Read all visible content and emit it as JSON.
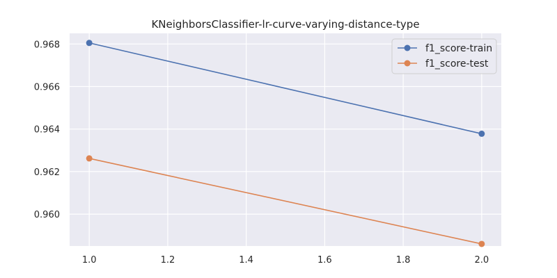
{
  "chart_data": {
    "type": "line",
    "title": "KNeighborsClassifier-lr-curve-varying-distance-type",
    "xlabel": "",
    "ylabel": "",
    "xlim": [
      0.95,
      2.05
    ],
    "ylim": [
      0.9585,
      0.9685
    ],
    "x_ticks": [
      1.0,
      1.2,
      1.4,
      1.6,
      1.8,
      2.0
    ],
    "x_tick_labels": [
      "1.0",
      "1.2",
      "1.4",
      "1.6",
      "1.8",
      "2.0"
    ],
    "y_ticks": [
      0.96,
      0.962,
      0.964,
      0.966,
      0.968
    ],
    "y_tick_labels": [
      "0.960",
      "0.962",
      "0.964",
      "0.966",
      "0.968"
    ],
    "grid": true,
    "legend_position": "top-right",
    "series": [
      {
        "name": "f1_score-train",
        "color": "#4c72b0",
        "x": [
          1.0,
          2.0
        ],
        "y": [
          0.96805,
          0.96378
        ]
      },
      {
        "name": "f1_score-test",
        "color": "#dd8452",
        "x": [
          1.0,
          2.0
        ],
        "y": [
          0.96262,
          0.9586
        ]
      }
    ]
  }
}
